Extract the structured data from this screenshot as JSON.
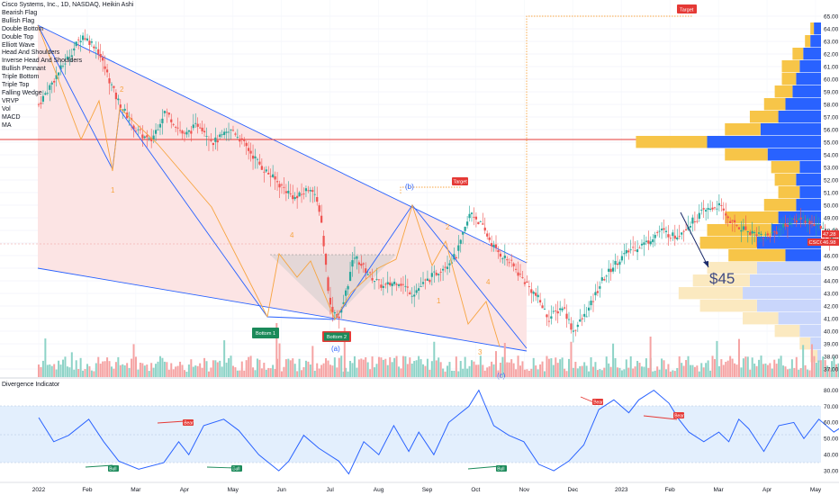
{
  "header": {
    "symbol_line": "Cisco Systems, Inc., 1D, NASDAQ, Heikin Ashi"
  },
  "legend": {
    "items": [
      "Bearish Flag",
      "Bullish Flag",
      "Double Bottom",
      "Double Top",
      "Elliott Wave",
      "Head And Shoulders",
      "Inverse Head And Shoulders",
      "Bullish Pennant",
      "Triple Bottom",
      "Triple Top",
      "Falling Wedge",
      "VRVP",
      "Vol",
      "MACD",
      "MA"
    ]
  },
  "indicator": {
    "title": "Divergence Indicator"
  },
  "colors": {
    "up": "#26a69a",
    "down": "#ef5350",
    "wedge_fill": "#fce0e0",
    "wedge_line": "#2962ff",
    "wave_line": "#f7a440",
    "hline": "#e53935",
    "vp_up": "#2962ff",
    "vp_down": "#f7c548",
    "osc_line": "#2962ff",
    "osc_band": "#e3effd"
  },
  "annotations": {
    "price_text": "$45",
    "target_top": "Target",
    "target_mid": "Target",
    "bottom1": "Bottom 1",
    "bottom2": "Bottom 2",
    "wave_b": "(b)",
    "wave_a": "(a)",
    "wave_c": "(c)",
    "wave_1a": "1",
    "wave_2a": "2",
    "wave_4a": "4",
    "wave_1b": "1",
    "wave_2b": "2",
    "wave_3b": "3",
    "wave_4b": "4",
    "bull": "Bull",
    "bear": "Bear"
  },
  "price_tags": {
    "symbol": "CSCO",
    "last": "46.98",
    "prev": "47.28"
  },
  "chart_data": {
    "type": "candlestick",
    "title": "Cisco Systems, Inc., 1D, NASDAQ, Heikin Ashi",
    "ylim": [
      36,
      65
    ],
    "y_ticks": [
      "37.00",
      "38.00",
      "39.00",
      "40.00",
      "41.00",
      "42.00",
      "43.00",
      "44.00",
      "45.00",
      "46.00",
      "47.00",
      "48.00",
      "49.00",
      "50.00",
      "51.00",
      "52.00",
      "53.00",
      "54.00",
      "55.00",
      "56.00",
      "57.00",
      "58.00",
      "59.00",
      "60.00",
      "61.00",
      "62.00",
      "63.00",
      "64.00",
      "65.00"
    ],
    "x_ticks": [
      "2022",
      "Feb",
      "Mar",
      "Apr",
      "May",
      "Jun",
      "Jul",
      "Aug",
      "Sep",
      "Oct",
      "Nov",
      "Dec",
      "2023",
      "Feb",
      "Mar",
      "Apr",
      "May"
    ],
    "price_path": [
      [
        0.0,
        58.0
      ],
      [
        0.4,
        60.5
      ],
      [
        0.9,
        63.5
      ],
      [
        1.2,
        62.5
      ],
      [
        1.6,
        58.5
      ],
      [
        2.0,
        56.0
      ],
      [
        2.3,
        55.0
      ],
      [
        2.6,
        57.5
      ],
      [
        3.0,
        55.5
      ],
      [
        3.3,
        56.5
      ],
      [
        3.6,
        55.0
      ],
      [
        4.0,
        56.0
      ],
      [
        4.3,
        54.5
      ],
      [
        4.6,
        53.0
      ],
      [
        5.0,
        51.5
      ],
      [
        5.3,
        50.5
      ],
      [
        5.6,
        51.5
      ],
      [
        5.8,
        49.5
      ],
      [
        6.0,
        42.0
      ],
      [
        6.2,
        41.0
      ],
      [
        6.5,
        46.0
      ],
      [
        6.8,
        44.5
      ],
      [
        7.1,
        43.5
      ],
      [
        7.4,
        44.0
      ],
      [
        7.7,
        43.0
      ],
      [
        8.0,
        44.0
      ],
      [
        8.3,
        45.0
      ],
      [
        8.6,
        46.0
      ],
      [
        8.9,
        49.5
      ],
      [
        9.1,
        48.5
      ],
      [
        9.4,
        46.5
      ],
      [
        9.7,
        45.5
      ],
      [
        10.0,
        44.0
      ],
      [
        10.3,
        42.5
      ],
      [
        10.5,
        41.0
      ],
      [
        10.8,
        42.0
      ],
      [
        11.0,
        40.0
      ],
      [
        11.3,
        41.5
      ],
      [
        11.6,
        44.0
      ],
      [
        11.9,
        45.5
      ],
      [
        12.2,
        46.5
      ],
      [
        12.5,
        47.0
      ],
      [
        12.8,
        48.0
      ],
      [
        13.1,
        47.5
      ],
      [
        13.4,
        48.5
      ],
      [
        13.7,
        49.5
      ],
      [
        14.0,
        50.0
      ],
      [
        14.3,
        48.5
      ],
      [
        14.6,
        48.0
      ],
      [
        15.0,
        47.5
      ],
      [
        15.4,
        48.5
      ],
      [
        15.7,
        49.0
      ],
      [
        16.0,
        48.5
      ],
      [
        16.3,
        47.5
      ],
      [
        16.6,
        48.0
      ],
      [
        17.0,
        46.5
      ],
      [
        17.2,
        46.5
      ]
    ],
    "levels": {
      "resistance_hline": 55.1,
      "target_price": 45
    },
    "volume_profile_bins": [
      [
        64,
        0.02,
        0.01
      ],
      [
        63,
        0.03,
        0.015
      ],
      [
        62,
        0.05,
        0.03
      ],
      [
        61,
        0.06,
        0.05
      ],
      [
        60,
        0.07,
        0.04
      ],
      [
        59,
        0.08,
        0.05
      ],
      [
        58,
        0.1,
        0.06
      ],
      [
        57,
        0.12,
        0.08
      ],
      [
        56,
        0.17,
        0.1
      ],
      [
        55,
        0.32,
        0.2
      ],
      [
        54,
        0.15,
        0.12
      ],
      [
        53,
        0.06,
        0.08
      ],
      [
        52,
        0.07,
        0.06
      ],
      [
        51,
        0.06,
        0.06
      ],
      [
        50,
        0.07,
        0.09
      ],
      [
        49,
        0.12,
        0.15
      ],
      [
        48,
        0.14,
        0.18
      ],
      [
        47,
        0.18,
        0.16
      ],
      [
        46,
        0.1,
        0.16
      ],
      [
        45,
        0.18,
        0.14
      ],
      [
        44,
        0.2,
        0.16
      ],
      [
        43,
        0.22,
        0.18
      ],
      [
        42,
        0.18,
        0.16
      ],
      [
        41,
        0.12,
        0.1
      ],
      [
        40,
        0.06,
        0.07
      ],
      [
        39,
        0.03,
        0.03
      ],
      [
        38,
        0.01,
        0.02
      ]
    ],
    "oscillator": {
      "ylim": [
        25,
        82
      ],
      "y_ticks": [
        "30.00",
        "40.00",
        "50.00",
        "60.00",
        "70.00",
        "80.00"
      ],
      "band": [
        30,
        70
      ]
    }
  }
}
